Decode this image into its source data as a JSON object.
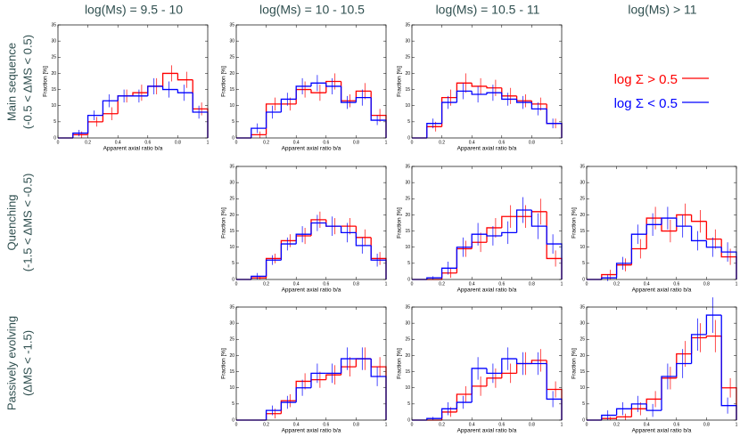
{
  "column_titles": [
    "log(Ms) = 9.5 - 10",
    "log(Ms) = 10 - 10.5",
    "log(Ms) = 10.5 - 11",
    "log(Ms) > 11"
  ],
  "row_labels": [
    [
      "Main sequence",
      "(-0.5 < ΔMS < 0.5)"
    ],
    [
      "Quenching",
      "(-1.5 < ΔMS < -0.5)"
    ],
    [
      "Passively evolving",
      "(ΔMS < -1.5)"
    ]
  ],
  "chart_data": [
    {
      "type": "histogram",
      "bins": [
        0,
        0.1,
        0.2,
        0.3,
        0.4,
        0.5,
        0.6,
        0.7,
        0.8,
        0.9,
        1
      ],
      "xlim": [
        0,
        1
      ],
      "ylim": [
        0,
        35
      ],
      "xticks": [
        0,
        0.2,
        0.4,
        0.6,
        0.8,
        1
      ],
      "yticks": [
        0,
        5,
        10,
        15,
        20,
        25,
        30,
        35
      ],
      "xlabel": "Apparent axial ratio b/a",
      "ylabel": "Fraction [%]",
      "series": [
        {
          "name": "log Σ > 0.5",
          "color": "#ff0000",
          "values": [
            0,
            1,
            5,
            7.5,
            13,
            14,
            16,
            20,
            18,
            9
          ],
          "errors": [
            0,
            1,
            1.5,
            2,
            2,
            2.5,
            2.5,
            2.5,
            2.5,
            2
          ]
        },
        {
          "name": "log Σ < 0.5",
          "color": "#0000ff",
          "values": [
            0,
            1.5,
            7,
            11.5,
            13,
            13,
            16,
            15,
            14,
            8
          ],
          "errors": [
            0,
            1,
            1.5,
            2,
            2,
            2,
            2.5,
            2.5,
            2.5,
            2
          ]
        }
      ]
    },
    {
      "type": "histogram",
      "bins": [
        0,
        0.1,
        0.2,
        0.3,
        0.4,
        0.5,
        0.6,
        0.7,
        0.8,
        0.9,
        1
      ],
      "xlim": [
        0,
        1
      ],
      "ylim": [
        0,
        35
      ],
      "xticks": [
        0,
        0.2,
        0.4,
        0.6,
        0.8,
        1
      ],
      "yticks": [
        0,
        5,
        10,
        15,
        20,
        25,
        30,
        35
      ],
      "xlabel": "Apparent axial ratio b/a",
      "ylabel": "Fraction [%]",
      "series": [
        {
          "name": "log Σ > 0.5",
          "color": "#ff0000",
          "values": [
            0,
            1,
            10.5,
            10.5,
            15,
            14,
            17.5,
            11.5,
            14.5,
            7
          ],
          "errors": [
            0,
            1,
            2,
            2,
            2.5,
            2.5,
            2.5,
            2,
            2.5,
            2
          ]
        },
        {
          "name": "log Σ < 0.5",
          "color": "#0000ff",
          "values": [
            0,
            3,
            8,
            12,
            16,
            17,
            16,
            11,
            12.5,
            5.5
          ],
          "errors": [
            0,
            1.5,
            2,
            2,
            2.5,
            2.5,
            2.5,
            2,
            2.5,
            1.5
          ]
        }
      ]
    },
    {
      "type": "histogram",
      "bins": [
        0,
        0.1,
        0.2,
        0.3,
        0.4,
        0.5,
        0.6,
        0.7,
        0.8,
        0.9,
        1
      ],
      "xlim": [
        0,
        1
      ],
      "ylim": [
        0,
        35
      ],
      "xticks": [
        0,
        0.2,
        0.4,
        0.6,
        0.8,
        1
      ],
      "yticks": [
        0,
        5,
        10,
        15,
        20,
        25,
        30,
        35
      ],
      "xlabel": "Apparent axial ratio b/a",
      "ylabel": "Fraction [%]",
      "series": [
        {
          "name": "log Σ > 0.5",
          "color": "#ff0000",
          "values": [
            0,
            3.5,
            12.5,
            17,
            16,
            15.5,
            13,
            11.5,
            10.5,
            4.5
          ],
          "errors": [
            0,
            1.5,
            2.5,
            3,
            2.5,
            2.5,
            2.5,
            2,
            2,
            1.5
          ]
        },
        {
          "name": "log Σ < 0.5",
          "color": "#0000ff",
          "values": [
            0,
            4.5,
            11,
            14.5,
            13.5,
            14,
            12,
            11,
            9,
            4.5
          ],
          "errors": [
            0,
            1.5,
            2,
            2.5,
            2.5,
            2.5,
            2,
            2,
            2,
            1.5
          ]
        }
      ]
    },
    {
      "type": "histogram",
      "bins": [
        0,
        0.1,
        0.2,
        0.3,
        0.4,
        0.5,
        0.6,
        0.7,
        0.8,
        0.9,
        1
      ],
      "xlim": [
        0,
        1
      ],
      "ylim": [
        0,
        35
      ],
      "xticks": [
        0,
        0.2,
        0.4,
        0.6,
        0.8,
        1
      ],
      "yticks": [
        0,
        5,
        10,
        15,
        20,
        25,
        30,
        35
      ],
      "xlabel": "Apparent axial ratio b/a",
      "ylabel": "Fraction [%]",
      "series": [
        {
          "name": "log Σ > 0.5",
          "color": "#ff0000",
          "values": [
            0,
            0.5,
            6.5,
            12,
            13.5,
            18.5,
            16.5,
            16.5,
            13,
            6.5
          ],
          "errors": [
            0,
            0.5,
            1.5,
            2,
            2.5,
            2.5,
            2.5,
            2.5,
            2.5,
            2
          ]
        },
        {
          "name": "log Σ < 0.5",
          "color": "#0000ff",
          "values": [
            0,
            1,
            6,
            11,
            14,
            17.5,
            16.5,
            14.5,
            10.5,
            6
          ],
          "errors": [
            0,
            1,
            1.5,
            2,
            2.5,
            2.5,
            3,
            3,
            2.5,
            2
          ]
        }
      ]
    },
    {
      "type": "histogram",
      "bins": [
        0,
        0.1,
        0.2,
        0.3,
        0.4,
        0.5,
        0.6,
        0.7,
        0.8,
        0.9,
        1
      ],
      "xlim": [
        0,
        1
      ],
      "ylim": [
        0,
        35
      ],
      "xticks": [
        0,
        0.2,
        0.4,
        0.6,
        0.8,
        1
      ],
      "yticks": [
        0,
        5,
        10,
        15,
        20,
        25,
        30,
        35
      ],
      "xlabel": "Apparent axial ratio b/a",
      "ylabel": "Fraction [%]",
      "series": [
        {
          "name": "log Σ > 0.5",
          "color": "#ff0000",
          "values": [
            0,
            0,
            2,
            9.5,
            11.5,
            16,
            19.5,
            19.5,
            21,
            6.5
          ],
          "errors": [
            0,
            0,
            1.5,
            2.5,
            3,
            3,
            3.5,
            3.5,
            4,
            2.5
          ]
        },
        {
          "name": "log Σ < 0.5",
          "color": "#0000ff",
          "values": [
            0,
            0.5,
            3.5,
            10,
            14,
            13.5,
            14.5,
            21.5,
            16.5,
            11
          ],
          "errors": [
            0,
            0.5,
            2,
            3,
            3.5,
            3,
            3.5,
            4,
            4,
            3
          ]
        }
      ]
    },
    {
      "type": "histogram",
      "bins": [
        0,
        0.1,
        0.2,
        0.3,
        0.4,
        0.5,
        0.6,
        0.7,
        0.8,
        0.9,
        1
      ],
      "xlim": [
        0,
        1
      ],
      "ylim": [
        0,
        35
      ],
      "xticks": [
        0,
        0.2,
        0.4,
        0.6,
        0.8,
        1
      ],
      "yticks": [
        0,
        5,
        10,
        15,
        20,
        25,
        30,
        35
      ],
      "xlabel": "Apparent axial ratio b/a",
      "ylabel": "Fraction [%]",
      "series": [
        {
          "name": "log Σ > 0.5",
          "color": "#ff0000",
          "values": [
            0,
            1.5,
            4.5,
            9.5,
            19,
            15,
            20,
            18,
            12.5,
            7
          ],
          "errors": [
            0,
            1.5,
            2,
            3,
            3.5,
            3.5,
            3.5,
            3.5,
            3,
            2.5
          ]
        },
        {
          "name": "log Σ < 0.5",
          "color": "#0000ff",
          "values": [
            0,
            0.5,
            5,
            14,
            17,
            19,
            16.5,
            12,
            10,
            8.5
          ],
          "errors": [
            0,
            1,
            2,
            3,
            3.5,
            3.5,
            3.5,
            3,
            3,
            3
          ]
        }
      ]
    },
    {
      "type": "histogram",
      "bins": [
        0,
        0.1,
        0.2,
        0.3,
        0.4,
        0.5,
        0.6,
        0.7,
        0.8,
        0.9,
        1
      ],
      "xlim": [
        0,
        1
      ],
      "ylim": [
        0,
        35
      ],
      "xticks": [
        0,
        0.2,
        0.4,
        0.6,
        0.8,
        1
      ],
      "yticks": [
        0,
        5,
        10,
        15,
        20,
        25,
        30,
        35
      ],
      "xlabel": "Apparent axial ratio b/a",
      "ylabel": "Fraction [%]",
      "series": [
        {
          "name": "log Σ > 0.5",
          "color": "#ff0000",
          "values": [
            0,
            0,
            2,
            6,
            12,
            12.5,
            14,
            16.5,
            19,
            16.5
          ],
          "errors": [
            0,
            0,
            1.5,
            2,
            2.5,
            2.5,
            3,
            3,
            3.5,
            3
          ]
        },
        {
          "name": "log Σ < 0.5",
          "color": "#0000ff",
          "values": [
            0,
            0,
            3,
            5.5,
            10,
            14.5,
            14.5,
            19,
            19,
            13.5
          ],
          "errors": [
            0,
            0,
            1.5,
            2,
            2.5,
            3,
            3,
            3.5,
            3.5,
            3
          ]
        }
      ]
    },
    {
      "type": "histogram",
      "bins": [
        0,
        0.1,
        0.2,
        0.3,
        0.4,
        0.5,
        0.6,
        0.7,
        0.8,
        0.9,
        1
      ],
      "xlim": [
        0,
        1
      ],
      "ylim": [
        0,
        35
      ],
      "xticks": [
        0,
        0.2,
        0.4,
        0.6,
        0.8,
        1
      ],
      "yticks": [
        0,
        5,
        10,
        15,
        20,
        25,
        30,
        35
      ],
      "xlabel": "Apparent axial ratio b/a",
      "ylabel": "Fraction [%]",
      "series": [
        {
          "name": "log Σ > 0.5",
          "color": "#ff0000",
          "values": [
            0,
            0,
            2.5,
            8,
            10.5,
            13,
            14.5,
            17.5,
            18.5,
            9.5
          ],
          "errors": [
            0,
            0,
            1.5,
            2.5,
            3,
            3,
            3,
            3.5,
            3.5,
            2.5
          ]
        },
        {
          "name": "log Σ < 0.5",
          "color": "#0000ff",
          "values": [
            0,
            0.5,
            3.5,
            5.5,
            16,
            14.5,
            19,
            17.5,
            17.5,
            6.5
          ],
          "errors": [
            0,
            0.5,
            2,
            2,
            3.5,
            3,
            3.5,
            3.5,
            3.5,
            2.5
          ]
        }
      ]
    },
    {
      "type": "histogram",
      "bins": [
        0,
        0.1,
        0.2,
        0.3,
        0.4,
        0.5,
        0.6,
        0.7,
        0.8,
        0.9,
        1
      ],
      "xlim": [
        0,
        1
      ],
      "ylim": [
        0,
        35
      ],
      "xticks": [
        0,
        0.2,
        0.4,
        0.6,
        0.8,
        1
      ],
      "yticks": [
        0,
        5,
        10,
        15,
        20,
        25,
        30,
        35
      ],
      "xlabel": "Apparent axial ratio b/a",
      "ylabel": "Fraction [%]",
      "series": [
        {
          "name": "log Σ > 0.5",
          "color": "#ff0000",
          "values": [
            0,
            0.5,
            1,
            3.5,
            6.5,
            13,
            20.5,
            25.5,
            26,
            10
          ],
          "errors": [
            0,
            0.5,
            1,
            2,
            2.5,
            3.5,
            4,
            4.5,
            5,
            3
          ]
        },
        {
          "name": "log Σ < 0.5",
          "color": "#0000ff",
          "values": [
            0,
            1.5,
            3.5,
            5,
            3,
            13.5,
            17.5,
            26.5,
            32.5,
            4.5
          ],
          "errors": [
            0,
            1.5,
            2,
            2.5,
            2,
            4,
            4.5,
            5,
            5.5,
            2.5
          ]
        }
      ]
    }
  ]
}
